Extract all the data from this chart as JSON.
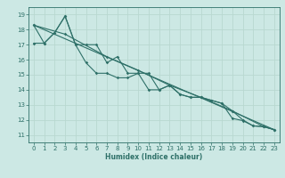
{
  "xlabel": "Humidex (Indice chaleur)",
  "xlim": [
    -0.5,
    23.5
  ],
  "ylim": [
    10.5,
    19.5
  ],
  "xticks": [
    0,
    1,
    2,
    3,
    4,
    5,
    6,
    7,
    8,
    9,
    10,
    11,
    12,
    13,
    14,
    15,
    16,
    17,
    18,
    19,
    20,
    21,
    22,
    23
  ],
  "yticks": [
    11,
    12,
    13,
    14,
    15,
    16,
    17,
    18,
    19
  ],
  "bg_color": "#cce8e4",
  "grid_color": "#b8d8d0",
  "line_color": "#2e7068",
  "lines": [
    {
      "x": [
        0,
        1,
        2,
        3,
        4,
        5,
        6,
        7,
        8,
        9,
        10,
        11,
        12,
        13,
        14,
        15,
        16,
        17,
        18,
        19,
        20,
        21,
        22,
        23
      ],
      "y": [
        18.3,
        17.1,
        17.8,
        18.9,
        17.0,
        15.8,
        15.1,
        15.1,
        14.8,
        14.8,
        15.1,
        14.0,
        14.0,
        14.3,
        13.7,
        13.5,
        13.5,
        13.3,
        13.1,
        12.1,
        11.95,
        11.6,
        11.55,
        11.35
      ]
    },
    {
      "x": [
        0,
        23
      ],
      "y": [
        18.3,
        11.35
      ]
    },
    {
      "x": [
        0,
        1,
        2,
        3,
        4,
        5,
        6,
        7,
        8,
        9,
        10,
        11,
        12,
        13,
        14,
        15,
        16,
        17,
        18,
        19,
        20,
        21,
        22,
        23
      ],
      "y": [
        17.1,
        17.1,
        17.8,
        18.9,
        17.0,
        17.0,
        17.0,
        15.8,
        16.2,
        15.1,
        15.1,
        15.1,
        14.0,
        14.3,
        13.7,
        13.5,
        13.5,
        13.3,
        13.1,
        12.6,
        12.0,
        11.6,
        11.55,
        11.35
      ]
    },
    {
      "x": [
        0,
        3,
        7,
        10,
        13,
        16,
        19,
        22,
        23
      ],
      "y": [
        18.3,
        17.7,
        16.2,
        15.3,
        14.3,
        13.5,
        12.6,
        11.55,
        11.35
      ]
    }
  ]
}
